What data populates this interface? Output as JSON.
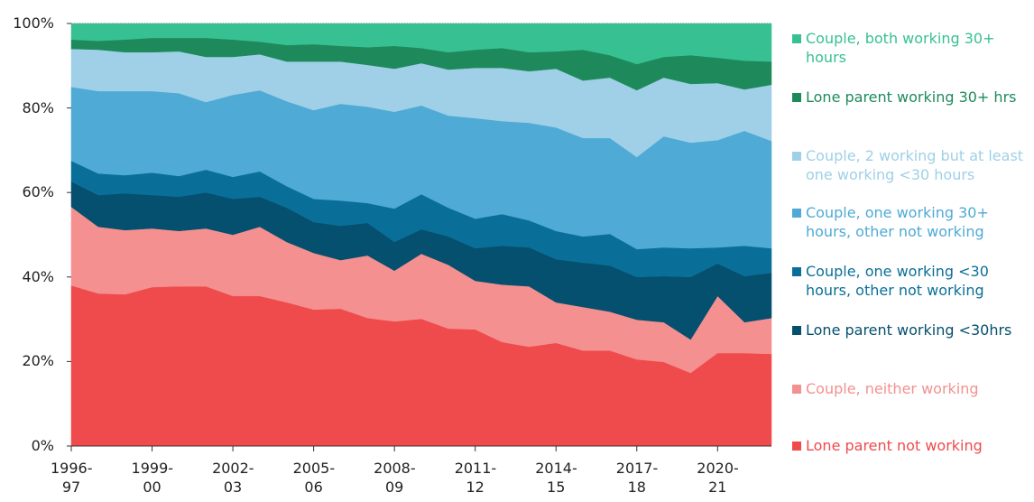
{
  "chart_data": {
    "type": "stacked-area",
    "categories": [
      "1996-97",
      null,
      null,
      "1999-00",
      null,
      null,
      "2002-03",
      null,
      null,
      "2005-06",
      null,
      null,
      "2008-09",
      null,
      null,
      "2011-12",
      null,
      null,
      "2014-15",
      null,
      null,
      "2017-18",
      null,
      null,
      "2020-21",
      null,
      null
    ],
    "ylim": [
      0,
      100
    ],
    "yticks": [
      {
        "value": 0,
        "label": "0%"
      },
      {
        "value": 20,
        "label": "20%"
      },
      {
        "value": 40,
        "label": "40%"
      },
      {
        "value": 60,
        "label": "60%"
      },
      {
        "value": 80,
        "label": "80%"
      },
      {
        "value": 100,
        "label": "100%"
      }
    ],
    "series": [
      {
        "name": "Lone parent not working",
        "color": "#ef4a4c",
        "values": [
          38.0,
          36.1,
          35.9,
          37.6,
          37.8,
          37.8,
          35.5,
          35.5,
          34.0,
          32.3,
          32.5,
          30.3,
          29.5,
          30.1,
          27.8,
          27.6,
          24.6,
          23.5,
          24.4,
          22.6,
          22.6,
          20.5,
          19.9,
          17.3,
          22.0,
          22.0,
          21.8
        ]
      },
      {
        "name": "Couple, neither working",
        "color": "#f4908f",
        "values": [
          18.6,
          15.8,
          15.2,
          13.9,
          13.1,
          13.7,
          14.5,
          16.4,
          14.3,
          13.4,
          11.5,
          14.8,
          12.0,
          15.4,
          15.1,
          11.5,
          13.6,
          14.3,
          9.6,
          10.3,
          9.2,
          9.4,
          9.4,
          7.9,
          13.5,
          7.3,
          8.5
        ]
      },
      {
        "name": "Lone parent working <30hrs",
        "color": "#054f6f",
        "values": [
          6.0,
          7.5,
          8.7,
          7.9,
          8.1,
          8.5,
          8.5,
          7.1,
          8.1,
          7.3,
          8.1,
          7.7,
          6.8,
          5.8,
          6.7,
          7.7,
          9.2,
          9.2,
          10.2,
          10.5,
          10.9,
          10.1,
          10.9,
          14.8,
          7.7,
          10.9,
          10.7
        ]
      },
      {
        "name": "Couple, one working <30 hours, other not working",
        "color": "#0a6f98",
        "values": [
          4.9,
          5.1,
          4.3,
          5.3,
          4.9,
          5.4,
          5.2,
          6.0,
          5.1,
          5.5,
          6.0,
          4.7,
          7.9,
          8.3,
          6.8,
          7.0,
          7.5,
          6.4,
          6.7,
          6.2,
          7.5,
          6.6,
          6.8,
          6.8,
          3.8,
          7.2,
          5.8
        ]
      },
      {
        "name": "Couple, one working 30+ hours, other not working",
        "color": "#4faad6",
        "values": [
          17.5,
          19.5,
          19.9,
          19.3,
          19.6,
          16.0,
          19.4,
          19.2,
          20.1,
          21.0,
          22.9,
          22.8,
          22.9,
          21.0,
          21.8,
          23.8,
          22.0,
          23.1,
          24.5,
          23.3,
          22.7,
          21.8,
          26.3,
          25.0,
          25.4,
          27.2,
          25.4
        ]
      },
      {
        "name": "Couple, 2 working but at least one working <30 hours",
        "color": "#9fd0e7",
        "values": [
          9.0,
          9.8,
          9.2,
          9.2,
          9.9,
          10.7,
          9.0,
          8.5,
          9.4,
          11.5,
          10.0,
          9.9,
          10.2,
          10.0,
          10.9,
          11.9,
          12.6,
          12.2,
          13.9,
          13.6,
          14.3,
          15.8,
          13.9,
          13.9,
          13.5,
          9.8,
          13.3
        ]
      },
      {
        "name": "Lone parent working 30+ hrs",
        "color": "#1e8a5c",
        "values": [
          2.2,
          2.1,
          3.0,
          3.4,
          3.2,
          4.5,
          4.1,
          3.0,
          3.9,
          4.1,
          3.7,
          4.2,
          5.4,
          3.6,
          4.1,
          4.3,
          4.7,
          4.5,
          4.1,
          7.3,
          5.3,
          6.2,
          4.9,
          6.8,
          6.0,
          6.8,
          5.5
        ]
      },
      {
        "name": "Couple, both working 30+ hours",
        "color": "#37c192",
        "values": [
          3.8,
          4.1,
          3.8,
          3.4,
          3.4,
          3.4,
          3.8,
          4.3,
          5.1,
          4.9,
          5.3,
          5.6,
          5.3,
          5.8,
          6.8,
          6.2,
          5.8,
          6.8,
          6.6,
          6.2,
          7.5,
          9.6,
          7.9,
          7.5,
          8.1,
          8.8,
          9.0
        ]
      }
    ]
  }
}
